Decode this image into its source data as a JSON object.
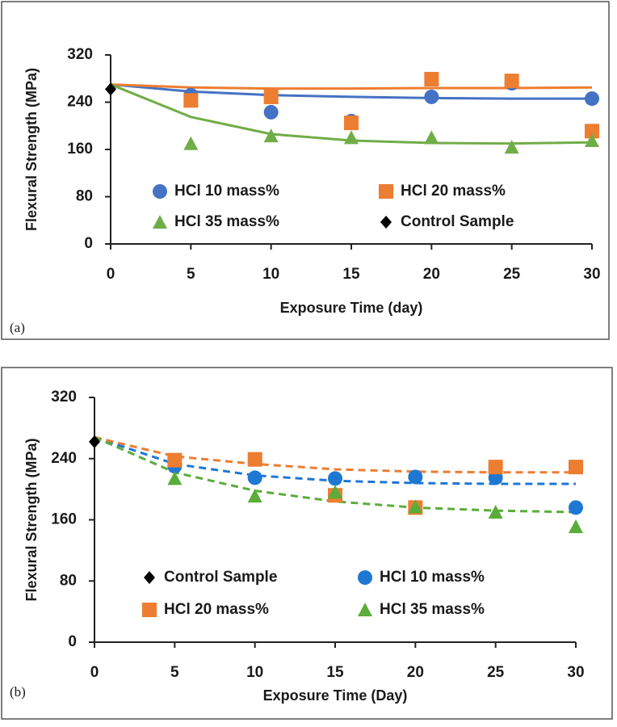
{
  "chart_data": [
    {
      "type": "scatter",
      "label": "(a)",
      "x_label": "Exposure Time (day)",
      "y_label": "Flexural Strength (MPa)",
      "xlim": [
        0,
        30
      ],
      "xticks": [
        0,
        5,
        10,
        15,
        20,
        25,
        30
      ],
      "ylim": [
        0,
        320
      ],
      "yticks": [
        0,
        80,
        160,
        240,
        320
      ],
      "grid": false,
      "fit_style": "solid",
      "fit_x": [
        0,
        5,
        10,
        15,
        20,
        25,
        30
      ],
      "series": [
        {
          "name": "HCl 10 mass%",
          "color": "#4472c4",
          "marker": "circle",
          "x": [
            5,
            10,
            15,
            20,
            25,
            30
          ],
          "values": [
            252,
            223,
            208,
            249,
            272,
            246
          ],
          "fit": [
            270,
            258,
            252,
            249,
            247,
            246,
            246
          ]
        },
        {
          "name": "HCl 20 mass%",
          "color": "#ed7d31",
          "marker": "square",
          "x": [
            5,
            10,
            15,
            20,
            25,
            30
          ],
          "values": [
            243,
            249,
            205,
            279,
            276,
            191
          ],
          "fit": [
            270,
            265,
            263,
            263,
            264,
            264,
            265
          ]
        },
        {
          "name": "HCl 35 mass%",
          "color": "#70ad47",
          "marker": "triangle",
          "x": [
            5,
            10,
            15,
            20,
            25,
            30
          ],
          "values": [
            170,
            183,
            180,
            180,
            164,
            175
          ],
          "fit": [
            270,
            215,
            186,
            175,
            171,
            170,
            172
          ]
        },
        {
          "name": "Control Sample",
          "color": "#000000",
          "marker": "diamond",
          "x": [
            0
          ],
          "values": [
            262
          ]
        }
      ]
    },
    {
      "type": "scatter",
      "label": "(b)",
      "x_label": "Exposure Time (Day)",
      "y_label": "Flexural Strength (MPa)",
      "xlim": [
        0,
        30
      ],
      "xticks": [
        0,
        5,
        10,
        15,
        20,
        25,
        30
      ],
      "ylim": [
        0,
        320
      ],
      "yticks": [
        0,
        80,
        160,
        240,
        320
      ],
      "grid": false,
      "fit_style": "dashed",
      "fit_x": [
        0,
        5,
        10,
        15,
        20,
        25,
        30
      ],
      "series": [
        {
          "name": "Control Sample",
          "color": "#000000",
          "marker": "diamond",
          "x": [
            0
          ],
          "values": [
            262
          ]
        },
        {
          "name": "HCl 10 mass%",
          "color": "#1f77d4",
          "marker": "circle",
          "x": [
            5,
            10,
            15,
            20,
            25,
            30
          ],
          "values": [
            230,
            215,
            214,
            216,
            215,
            176
          ],
          "fit": [
            268,
            233,
            218,
            211,
            208,
            207,
            207
          ]
        },
        {
          "name": "HCl 20 mass%",
          "color": "#ed7d31",
          "marker": "square",
          "x": [
            5,
            10,
            15,
            20,
            25,
            30
          ],
          "values": [
            238,
            239,
            192,
            176,
            229,
            229
          ],
          "fit": [
            268,
            243,
            233,
            226,
            223,
            222,
            222
          ]
        },
        {
          "name": "HCl 35 mass%",
          "color": "#5aad3a",
          "marker": "triangle",
          "x": [
            5,
            10,
            15,
            20,
            25,
            30
          ],
          "values": [
            214,
            191,
            196,
            177,
            170,
            151
          ],
          "fit": [
            268,
            222,
            198,
            184,
            176,
            172,
            170
          ]
        }
      ]
    }
  ]
}
